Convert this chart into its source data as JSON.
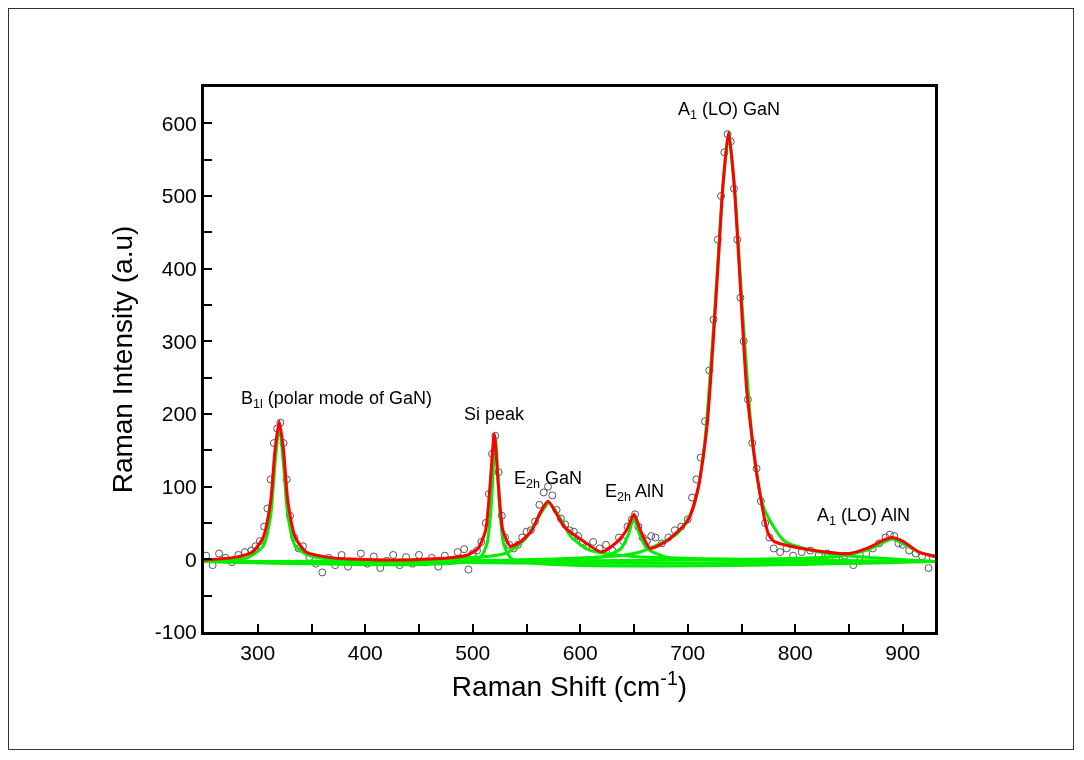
{
  "chart_data": {
    "type": "line",
    "xlabel": "Raman Shift (cm$^{-1}$)",
    "ylabel": "Raman Intensity (a.u)",
    "xlim": [
      250,
      930
    ],
    "ylim": [
      -100,
      650
    ],
    "xticks": [
      300,
      {
        "value": 350,
        "label": null
      },
      400,
      {
        "value": 450,
        "label": null
      },
      500,
      {
        "value": 550,
        "label": null
      },
      600,
      {
        "value": 650,
        "label": null
      },
      700,
      {
        "value": 750,
        "label": null
      },
      800,
      {
        "value": 850,
        "label": null
      },
      900
    ],
    "yticks": [
      -100,
      {
        "value": -50,
        "label": null
      },
      0,
      {
        "value": 50,
        "label": null
      },
      100,
      {
        "value": 150,
        "label": null
      },
      200,
      {
        "value": 250,
        "label": null
      },
      300,
      {
        "value": 350,
        "label": null
      },
      400,
      {
        "value": 450,
        "label": null
      },
      500,
      {
        "value": 550,
        "label": null
      },
      600
    ],
    "grid": false,
    "annotations": [
      {
        "text": "B$_{1l}$ (polar mode of GaN)",
        "x": 320,
        "y": 190
      },
      {
        "text": "Si peak",
        "x": 520,
        "y": 172
      },
      {
        "text": "E$_{2h}$ GaN",
        "x": 570,
        "y": 80
      },
      {
        "text": "E$_{2h}$ AlN",
        "x": 650,
        "y": 62
      },
      {
        "text": "A$_{1}$ (LO) GaN",
        "x": 738,
        "y": 588
      },
      {
        "text": "A$_{1}$ (LO) AlN",
        "x": 890,
        "y": 30
      }
    ],
    "series": [
      {
        "type": "scatter",
        "marker": "circle",
        "color": "#555555",
        "x": [
          252,
          258,
          264,
          270,
          276,
          282,
          288,
          294,
          298,
          302,
          306,
          309,
          312,
          315,
          318,
          321,
          324,
          327,
          330,
          334,
          338,
          342,
          348,
          354,
          360,
          366,
          372,
          378,
          384,
          396,
          402,
          408,
          414,
          420,
          426,
          432,
          438,
          444,
          450,
          456,
          462,
          468,
          474,
          480,
          486,
          492,
          496,
          500,
          504,
          508,
          512,
          515,
          518,
          521,
          524,
          527,
          530,
          534,
          538,
          542,
          546,
          550,
          554,
          558,
          562,
          566,
          570,
          574,
          578,
          582,
          586,
          590,
          594,
          598,
          602,
          606,
          612,
          618,
          624,
          630,
          636,
          640,
          644,
          648,
          651,
          654,
          658,
          662,
          666,
          670,
          676,
          682,
          688,
          694,
          700,
          704,
          708,
          712,
          716,
          720,
          724,
          728,
          731,
          734,
          737,
          740,
          743,
          746,
          749,
          752,
          756,
          760,
          764,
          768,
          772,
          776,
          780,
          786,
          792,
          798,
          806,
          814,
          822,
          830,
          838,
          846,
          854,
          860,
          866,
          872,
          878,
          884,
          888,
          892,
          896,
          900,
          906,
          912,
          918,
          924,
          928
        ],
        "values": [
          5,
          -8,
          8,
          2,
          -4,
          6,
          10,
          12,
          18,
          25,
          45,
          70,
          110,
          160,
          180,
          188,
          160,
          110,
          60,
          30,
          15,
          18,
          3,
          -6,
          -18,
          2,
          -8,
          6,
          -10,
          8,
          -6,
          4,
          -12,
          -2,
          6,
          -8,
          3,
          -6,
          6,
          -4,
          2,
          -10,
          5,
          -2,
          10,
          14,
          -14,
          8,
          12,
          24,
          50,
          90,
          145,
          170,
          120,
          60,
          30,
          20,
          15,
          20,
          30,
          38,
          40,
          52,
          75,
          92,
          100,
          88,
          68,
          56,
          48,
          40,
          38,
          32,
          22,
          18,
          24,
          15,
          20,
          12,
          30,
          25,
          45,
          55,
          62,
          45,
          30,
          25,
          32,
          30,
          22,
          30,
          40,
          45,
          55,
          85,
          110,
          140,
          190,
          260,
          330,
          440,
          500,
          560,
          585,
          575,
          510,
          440,
          360,
          300,
          220,
          160,
          125,
          80,
          50,
          30,
          15,
          10,
          15,
          5,
          10,
          12,
          6,
          8,
          2,
          5,
          -8,
          -2,
          8,
          15,
          22,
          30,
          34,
          32,
          22,
          20,
          12,
          8,
          4,
          -12,
          2
        ]
      },
      {
        "marker": "none",
        "color": "#00ee00",
        "x": [
          250,
          290,
          305,
          312,
          316,
          320,
          324,
          328,
          335,
          350,
          930
        ],
        "values": [
          -3,
          2,
          18,
          60,
          130,
          185,
          130,
          60,
          18,
          4,
          -3
        ]
      },
      {
        "marker": "none",
        "color": "#00ee00",
        "x": [
          250,
          505,
          513,
          517,
          521,
          525,
          529,
          537,
          930
        ],
        "values": [
          -3,
          0,
          20,
          70,
          168,
          70,
          20,
          0,
          -3
        ]
      },
      {
        "marker": "none",
        "color": "#00ee00",
        "x": [
          250,
          530,
          550,
          562,
          571,
          580,
          592,
          610,
          650,
          930
        ],
        "values": [
          -3,
          8,
          30,
          60,
          78,
          60,
          30,
          12,
          4,
          -3
        ]
      },
      {
        "marker": "none",
        "color": "#00ee00",
        "x": [
          250,
          620,
          638,
          645,
          650,
          655,
          662,
          680,
          930
        ],
        "values": [
          -3,
          3,
          15,
          35,
          58,
          35,
          15,
          3,
          -3
        ]
      },
      {
        "marker": "none",
        "color": "#00ee00",
        "x": [
          250,
          650,
          690,
          705,
          715,
          725,
          732,
          738,
          744,
          751,
          761,
          771,
          790,
          830,
          930
        ],
        "values": [
          -3,
          8,
          35,
          70,
          150,
          340,
          500,
          585,
          500,
          340,
          150,
          70,
          25,
          8,
          -3
        ]
      },
      {
        "marker": "none",
        "color": "#00ee00",
        "x": [
          250,
          840,
          865,
          880,
          890,
          900,
          915,
          930
        ],
        "values": [
          -3,
          4,
          12,
          22,
          28,
          22,
          10,
          4
        ]
      },
      {
        "marker": "none",
        "color": "#ff0000",
        "x": [
          250,
          280,
          295,
          305,
          312,
          316,
          320,
          324,
          328,
          335,
          345,
          370,
          420,
          470,
          495,
          505,
          512,
          516,
          520,
          524,
          528,
          535,
          545,
          555,
          563,
          570,
          577,
          585,
          600,
          620,
          635,
          643,
          650,
          656,
          665,
          680,
          700,
          710,
          718,
          728,
          733,
          738,
          743,
          748,
          755,
          765,
          775,
          780,
          790,
          810,
          850,
          870,
          880,
          890,
          900,
          915,
          930
        ],
        "values": [
          -1,
          3,
          10,
          30,
          80,
          150,
          190,
          150,
          80,
          30,
          10,
          2,
          -1,
          1,
          6,
          15,
          40,
          100,
          172,
          100,
          40,
          18,
          25,
          40,
          65,
          80,
          65,
          45,
          28,
          10,
          25,
          40,
          62,
          40,
          15,
          25,
          53,
          100,
          184,
          400,
          520,
          588,
          520,
          400,
          230,
          110,
          35,
          25,
          20,
          14,
          8,
          17,
          25,
          30,
          25,
          10,
          4
        ]
      }
    ]
  }
}
